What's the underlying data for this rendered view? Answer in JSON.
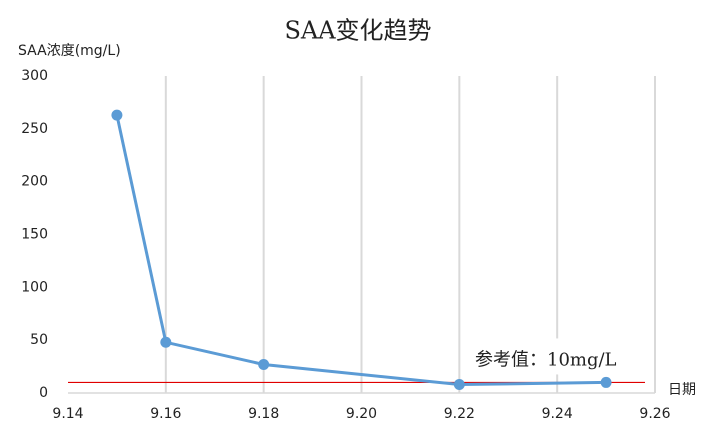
{
  "chart_data": {
    "type": "line",
    "title": "SAA变化趋势",
    "y_label": "SAA浓度(mg/L)",
    "x_label": "日期",
    "x": [
      9.15,
      9.16,
      9.18,
      9.22,
      9.25
    ],
    "series": [
      {
        "name": "SAA",
        "color": "#5b9bd5",
        "values": [
          263,
          48,
          27,
          8,
          10
        ]
      }
    ],
    "xlim": [
      9.14,
      9.26
    ],
    "xticks": [
      9.14,
      9.16,
      9.18,
      {
        "value": 9.2,
        "label": "9.20"
      },
      9.22,
      9.24,
      9.26
    ],
    "ylim": [
      0,
      300
    ],
    "yticks": [
      0,
      50,
      100,
      150,
      200,
      250,
      300
    ],
    "grid": "x",
    "reference_line": {
      "value": 10,
      "color": "#e00000",
      "label": "参考值：10mg/L"
    }
  }
}
